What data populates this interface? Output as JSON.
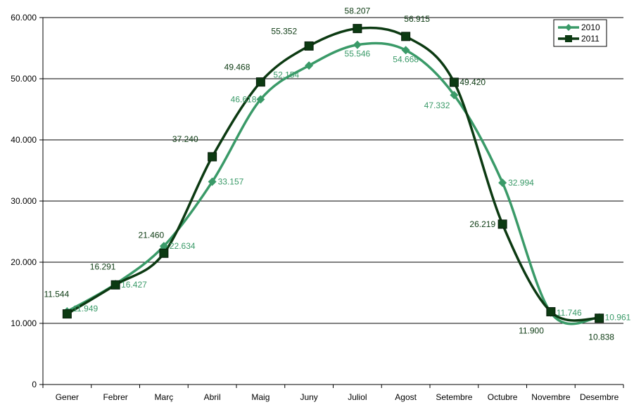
{
  "chart_data": {
    "type": "line",
    "title": "",
    "xlabel": "",
    "ylabel": "",
    "categories": [
      "Gener",
      "Febrer",
      "Març",
      "Abril",
      "Maig",
      "Juny",
      "Juliol",
      "Agost",
      "Setembre",
      "Octubre",
      "Novembre",
      "Desembre"
    ],
    "ylim": [
      0,
      60000
    ],
    "y_ticks": [
      0,
      10000,
      20000,
      30000,
      40000,
      50000,
      60000
    ],
    "y_tick_labels": [
      "0",
      "10.000",
      "20.000",
      "30.000",
      "40.000",
      "50.000",
      "60.000"
    ],
    "grid": "horizontal",
    "legend_position": "top-right",
    "smooth": true,
    "series": [
      {
        "name": "2010",
        "color": "#3a9a68",
        "marker": "diamond",
        "values": [
          11949,
          16427,
          22634,
          33157,
          46618,
          52154,
          55546,
          54668,
          47332,
          32994,
          11746,
          10961
        ],
        "labels": [
          "11.949",
          "16.427",
          "22.634",
          "33.157",
          "46.618",
          "52.154",
          "55.546",
          "54.668",
          "47.332",
          "32.994",
          "11.746",
          "10.961"
        ]
      },
      {
        "name": "2011",
        "color": "#0c3a12",
        "marker": "square",
        "values": [
          11544,
          16291,
          21460,
          37240,
          49468,
          55352,
          58207,
          56915,
          49420,
          26219,
          11900,
          10838
        ],
        "labels": [
          "11.544",
          "16.291",
          "21.460",
          "37.240",
          "49.468",
          "55.352",
          "58.207",
          "56.915",
          "49.420",
          "26.219",
          "11.900",
          "10.838"
        ]
      }
    ]
  }
}
